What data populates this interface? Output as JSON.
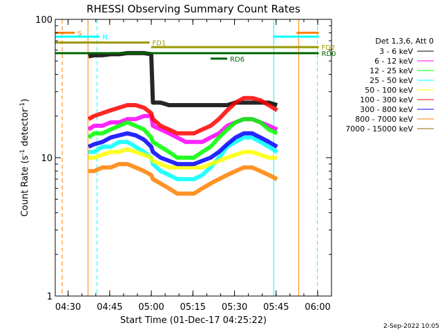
{
  "chart_data": {
    "type": "line",
    "title": "RHESSI Observing Summary Count Rates",
    "xlabel": "Start Time (01-Dec-17 04:25:22)",
    "ylabel_main": "Count Rate (s",
    "ylabel_sup": "-1",
    "ylabel_end": " detector",
    "ylabel_sup2": "-1",
    "ylabel_close": ")",
    "xlim": [
      "04:25:22",
      "06:05:00"
    ],
    "ylim": [
      1,
      100
    ],
    "yscale": "log",
    "x_ticks": [
      "04:30",
      "04:45",
      "05:00",
      "05:15",
      "05:30",
      "05:45",
      "06:00"
    ],
    "x_tick_minutes": [
      4.63,
      19.63,
      34.63,
      49.63,
      64.63,
      79.63,
      94.63
    ],
    "y_ticks": [
      "1",
      "10",
      "100"
    ],
    "y_tick_values": [
      1,
      10,
      100
    ],
    "legend_header": "Det 1,3,6, Att 0",
    "legend_placement": "right",
    "timestamp": "2-Sep-2022 10:05",
    "x_minutes": [
      12,
      14,
      17,
      20,
      23,
      26,
      29,
      32,
      34.6,
      35.2,
      38,
      41,
      44,
      47,
      50,
      53,
      56,
      59,
      62,
      65,
      68,
      71,
      74,
      77,
      80
    ],
    "series": [
      {
        "name": "3 - 6 keV",
        "color": "#000000",
        "values": [
          54,
          55,
          55,
          56,
          56,
          57,
          57,
          57,
          56,
          25,
          25,
          24,
          24,
          24,
          24,
          24,
          24,
          24,
          24,
          25,
          25,
          25,
          25,
          25,
          24
        ]
      },
      {
        "name": "6 - 12 keV",
        "color": "#ff00ff",
        "values": [
          16,
          17,
          17,
          18,
          18,
          19,
          19,
          20,
          20,
          17,
          16,
          15,
          14,
          13,
          13,
          13,
          14,
          15,
          17,
          18,
          19,
          19,
          18,
          17,
          16
        ]
      },
      {
        "name": "12 - 25 keV",
        "color": "#00ff00",
        "values": [
          14,
          15,
          15,
          16,
          17,
          18,
          17,
          16,
          14,
          13,
          12,
          11,
          10,
          10,
          10,
          11,
          12,
          14,
          16,
          18,
          19,
          19,
          18,
          16,
          15
        ]
      },
      {
        "name": "25 - 50 keV",
        "color": "#00ffff",
        "values": [
          11,
          11,
          12,
          12,
          13,
          13,
          12,
          11,
          10,
          9,
          8,
          7.5,
          7,
          7,
          7,
          7.5,
          8.5,
          10,
          12,
          13,
          14,
          14,
          13,
          12,
          11
        ]
      },
      {
        "name": "50 - 100 keV",
        "color": "#ffff00",
        "values": [
          10,
          10,
          10.5,
          11,
          11,
          11.5,
          11,
          10.5,
          10,
          9.5,
          9,
          8.5,
          8.5,
          8.5,
          8.5,
          8.5,
          9,
          9.5,
          10,
          10.5,
          11,
          11,
          10.5,
          10,
          10
        ]
      },
      {
        "name": "100 - 300 keV",
        "color": "#ff0000",
        "values": [
          19,
          20,
          21,
          22,
          23,
          24,
          24,
          23,
          21,
          19,
          17,
          16,
          15,
          15,
          15,
          16,
          17,
          19,
          22,
          25,
          27,
          27,
          26,
          24,
          22
        ]
      },
      {
        "name": "300 - 800 keV",
        "color": "#0000ff",
        "values": [
          12,
          12.5,
          13,
          14,
          14.5,
          15,
          14.5,
          13.5,
          12,
          11,
          10,
          9.5,
          9,
          9,
          9,
          9.5,
          10,
          11,
          12.5,
          14,
          15,
          15,
          14,
          13,
          12
        ]
      },
      {
        "name": "800 - 7000 keV",
        "color": "#ff8000",
        "values": [
          8,
          8,
          8.5,
          8.5,
          9,
          9,
          8.5,
          8,
          7.5,
          7,
          6.5,
          6,
          5.5,
          5.5,
          5.5,
          6,
          6.5,
          7,
          7.5,
          8,
          8.5,
          8.5,
          8,
          7.5,
          7
        ]
      },
      {
        "name": "7000 - 15000 keV",
        "color": "#996600",
        "values": []
      }
    ],
    "bars": [
      {
        "label": "S",
        "color": "#ff8000",
        "x_start": 0,
        "x_end": 7,
        "y": 80
      },
      {
        "label": "N",
        "color": "#00ffff",
        "x_start": 0,
        "x_end": 16,
        "y": 75
      },
      {
        "label": "FD1",
        "color": "#999900",
        "x_start": 0,
        "x_end": 34,
        "y": 68
      },
      {
        "label": "FD2",
        "color": "#999900",
        "x_start": 34.6,
        "x_end": 95,
        "y": 63
      },
      {
        "label": "RD0",
        "color": "#006600",
        "x_start": 0,
        "x_end": 95,
        "y": 57
      },
      {
        "label": "RD6",
        "color": "#006600",
        "x_start": 56,
        "x_end": 62,
        "y": 52
      },
      {
        "label": "",
        "color": "#00ffff",
        "x_start": 78.5,
        "x_end": 95,
        "y": 75
      },
      {
        "label": "",
        "color": "#ff8000",
        "x_start": 87,
        "x_end": 95,
        "y": 80
      }
    ],
    "vlines": [
      {
        "x": 2.5,
        "color": "#ff8000",
        "dash": true
      },
      {
        "x": 11.8,
        "color": "#ff8000",
        "dash": false
      },
      {
        "x": 15.1,
        "color": "#00ffff",
        "dash": true
      },
      {
        "x": 78.8,
        "color": "#00ffff",
        "dash": false
      },
      {
        "x": 87.8,
        "color": "#ff8000",
        "dash": false
      },
      {
        "x": 94.5,
        "color": "#00ffff",
        "dash": true
      }
    ]
  }
}
